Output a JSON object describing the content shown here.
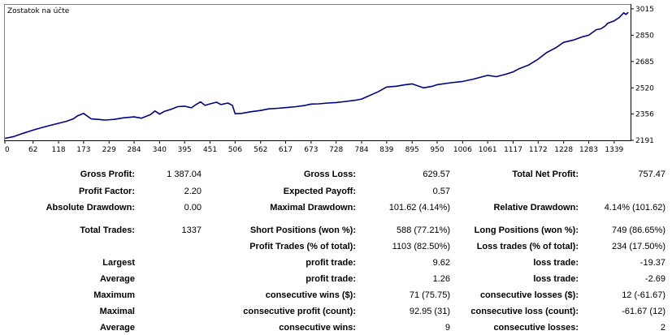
{
  "chart_data": {
    "type": "line",
    "title": "Zostatok na účte",
    "xlabel": "",
    "ylabel": "",
    "x_ticks": [
      "0",
      "62",
      "118",
      "173",
      "229",
      "284",
      "340",
      "395",
      "451",
      "506",
      "562",
      "617",
      "673",
      "728",
      "784",
      "839",
      "895",
      "950",
      "1006",
      "1061",
      "1117",
      "1172",
      "1228",
      "1283",
      "1339"
    ],
    "y_ticks": [
      "2191",
      "2356",
      "2520",
      "2685",
      "2850",
      "3015"
    ],
    "xlim": [
      0,
      1375
    ],
    "ylim": [
      2191,
      3040
    ],
    "grid": false,
    "series": [
      {
        "color": "#00008b",
        "x": [
          0,
          20,
          40,
          62,
          80,
          100,
          118,
          135,
          150,
          160,
          173,
          180,
          190,
          205,
          220,
          240,
          260,
          284,
          300,
          320,
          330,
          340,
          350,
          365,
          380,
          395,
          410,
          420,
          430,
          440,
          451,
          465,
          475,
          490,
          500,
          506,
          520,
          540,
          562,
          580,
          600,
          617,
          640,
          660,
          673,
          690,
          710,
          728,
          750,
          770,
          784,
          800,
          820,
          839,
          860,
          880,
          895,
          920,
          940,
          950,
          980,
          1006,
          1030,
          1050,
          1061,
          1080,
          1100,
          1117,
          1130,
          1150,
          1172,
          1190,
          1210,
          1228,
          1250,
          1270,
          1283,
          1300,
          1310,
          1320,
          1325,
          1339,
          1350,
          1360,
          1365,
          1370
        ],
        "y": [
          2203,
          2215,
          2235,
          2255,
          2270,
          2285,
          2298,
          2310,
          2325,
          2345,
          2360,
          2345,
          2325,
          2322,
          2318,
          2322,
          2332,
          2338,
          2330,
          2352,
          2375,
          2355,
          2372,
          2385,
          2402,
          2405,
          2395,
          2415,
          2432,
          2410,
          2420,
          2430,
          2415,
          2425,
          2410,
          2358,
          2360,
          2370,
          2378,
          2388,
          2392,
          2396,
          2402,
          2410,
          2418,
          2420,
          2425,
          2428,
          2435,
          2442,
          2450,
          2470,
          2495,
          2525,
          2530,
          2540,
          2545,
          2520,
          2530,
          2540,
          2552,
          2560,
          2575,
          2590,
          2598,
          2590,
          2605,
          2620,
          2640,
          2662,
          2700,
          2740,
          2770,
          2805,
          2820,
          2840,
          2850,
          2885,
          2890,
          2910,
          2925,
          2940,
          2960,
          2990,
          2980,
          2993
        ]
      }
    ]
  },
  "stats": {
    "gross_profit": {
      "label": "Gross Profit:",
      "value": "1 387.04"
    },
    "gross_loss": {
      "label": "Gross Loss:",
      "value": "629.57"
    },
    "total_net_profit": {
      "label": "Total Net Profit:",
      "value": "757.47"
    },
    "profit_factor": {
      "label": "Profit Factor:",
      "value": "2.20"
    },
    "expected_payoff": {
      "label": "Expected Payoff:",
      "value": "0.57"
    },
    "absolute_drawdown": {
      "label": "Absolute Drawdown:",
      "value": "0.00"
    },
    "maximal_drawdown": {
      "label": "Maximal Drawdown:",
      "value": "101.62 (4.14%)"
    },
    "relative_drawdown": {
      "label": "Relative Drawdown:",
      "value": "4.14% (101.62)"
    },
    "total_trades": {
      "label": "Total Trades:",
      "value": "1337"
    },
    "short_positions": {
      "label": "Short Positions (won %):",
      "value": "588 (77.21%)"
    },
    "long_positions": {
      "label": "Long Positions (won %):",
      "value": "749 (86.65%)"
    },
    "profit_trades": {
      "label": "Profit Trades (% of total):",
      "value": "1103 (82.50%)"
    },
    "loss_trades": {
      "label": "Loss trades (% of total):",
      "value": "234 (17.50%)"
    },
    "rows": [
      {
        "head": "Largest",
        "mid_label": "profit trade:",
        "mid_value": "9.62",
        "right_label": "loss trade:",
        "right_value": "-19.37"
      },
      {
        "head": "Average",
        "mid_label": "profit trade:",
        "mid_value": "1.26",
        "right_label": "loss trade:",
        "right_value": "-2.69"
      },
      {
        "head": "Maximum",
        "mid_label": "consecutive wins ($):",
        "mid_value": "71 (75.75)",
        "right_label": "consecutive losses ($):",
        "right_value": "12 (-61.67)"
      },
      {
        "head": "Maximal",
        "mid_label": "consecutive profit (count):",
        "mid_value": "92.95 (31)",
        "right_label": "consecutive loss (count):",
        "right_value": "-61.67 (12)"
      },
      {
        "head": "Average",
        "mid_label": "consecutive wins:",
        "mid_value": "9",
        "right_label": "consecutive losses:",
        "right_value": "2"
      }
    ]
  }
}
